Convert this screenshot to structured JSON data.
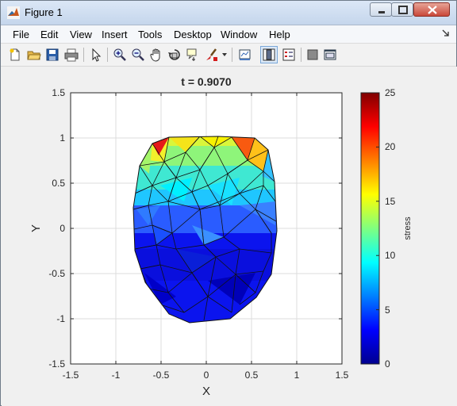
{
  "window": {
    "title": "Figure 1",
    "controls": [
      "minimize",
      "maximize",
      "close"
    ]
  },
  "menubar": {
    "items": [
      "File",
      "Edit",
      "View",
      "Insert",
      "Tools",
      "Desktop",
      "Window",
      "Help"
    ]
  },
  "toolbar": {
    "buttons": [
      "new-figure",
      "open-file",
      "save",
      "print",
      "edit-plot",
      "zoom-in",
      "zoom-out",
      "pan",
      "rotate-3d",
      "data-cursor",
      "brush",
      "link-plot",
      "colorbar",
      "legend",
      "hide-plot-tools",
      "show-plot-tools"
    ],
    "pressed": "colorbar"
  },
  "plot": {
    "title": "t = 0.9070",
    "xlabel": "X",
    "ylabel": "Y",
    "xticks": [
      "-1.5",
      "-1",
      "-0.5",
      "0",
      "0.5",
      "1",
      "1.5"
    ],
    "yticks": [
      "1.5",
      "1",
      "0.5",
      "0",
      "-0.5",
      "-1",
      "-1.5"
    ],
    "colorbar": {
      "label": "stress",
      "ticks": [
        "25",
        "20",
        "15",
        "10",
        "5",
        "0"
      ],
      "range": [
        0,
        25
      ],
      "colormap": "jet"
    }
  },
  "chart_data": {
    "type": "heatmap",
    "title": "t = 0.9070",
    "xlabel": "X",
    "ylabel": "Y",
    "xlim": [
      -1.5,
      1.5
    ],
    "ylim": [
      -1.5,
      1.5
    ],
    "grid": true,
    "colorbar_label": "stress",
    "clim": [
      0,
      25
    ],
    "colormap": "jet"
  }
}
